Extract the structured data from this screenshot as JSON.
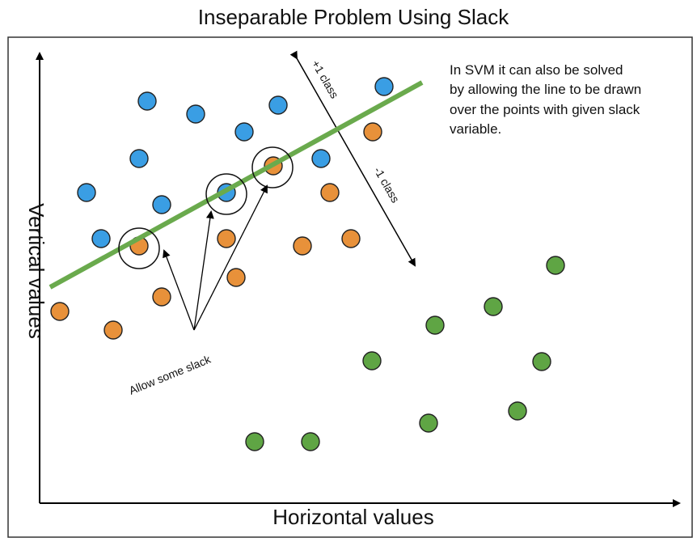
{
  "title": "Inseparable Problem Using Slack",
  "x_axis_label": "Horizontal values",
  "y_axis_label": "Vertical values",
  "note_lines": [
    "In SVM it can also be solved",
    "by allowing the line to be drawn",
    "over the points with given slack",
    "variable."
  ],
  "plus_class_label": "+1 class",
  "minus_class_label": "-1 class",
  "slack_label": "Allow some slack",
  "colors": {
    "blue": "#3a9ee4",
    "orange": "#e8913a",
    "green": "#5fa544",
    "separator": "#6aaa4d",
    "outline": "#222222"
  },
  "points": {
    "blue": [
      [
        182,
        125
      ],
      [
        242,
        141
      ],
      [
        302,
        163
      ],
      [
        344,
        130
      ],
      [
        475,
        107
      ],
      [
        172,
        196
      ],
      [
        107,
        238
      ],
      [
        200,
        253
      ],
      [
        125,
        295
      ],
      [
        397,
        196
      ],
      [
        280,
        238
      ]
    ],
    "orange": [
      [
        461,
        163
      ],
      [
        338,
        205
      ],
      [
        408,
        238
      ],
      [
        280,
        295
      ],
      [
        374,
        304
      ],
      [
        434,
        295
      ],
      [
        172,
        304
      ],
      [
        292,
        343
      ],
      [
        200,
        367
      ],
      [
        74,
        385
      ],
      [
        140,
        408
      ]
    ],
    "green": [
      [
        687,
        328
      ],
      [
        610,
        379
      ],
      [
        538,
        402
      ],
      [
        460,
        446
      ],
      [
        670,
        447
      ],
      [
        640,
        508
      ],
      [
        530,
        523
      ],
      [
        315,
        546
      ],
      [
        384,
        546
      ]
    ]
  },
  "slack_circles": [
    [
      172,
      307
    ],
    [
      280,
      240
    ],
    [
      337,
      207
    ]
  ],
  "separator_line": [
    [
      62,
      355
    ],
    [
      522,
      102
    ]
  ]
}
